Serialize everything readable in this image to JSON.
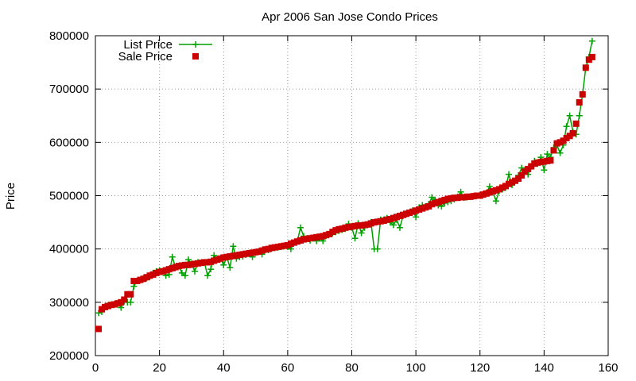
{
  "chart_data": {
    "type": "line",
    "title": "Apr 2006 San Jose Condo Prices",
    "xlabel": "",
    "ylabel": "Price",
    "xlim": [
      0,
      160
    ],
    "ylim": [
      200000,
      800000
    ],
    "x_ticks": [
      0,
      20,
      40,
      60,
      80,
      100,
      120,
      140,
      160
    ],
    "x_tick_labels": [
      "0",
      "20",
      "40",
      "60",
      "80",
      "100",
      "120",
      "140",
      "160"
    ],
    "y_ticks": [
      200000,
      300000,
      400000,
      500000,
      600000,
      700000,
      800000
    ],
    "y_tick_labels": [
      "200000",
      "300000",
      "400000",
      "500000",
      "600000",
      "700000",
      "800000"
    ],
    "grid": true,
    "legend_position": "top-left",
    "series": [
      {
        "name": "List Price",
        "style": "line with plus markers",
        "color": "#00a000",
        "x": [
          1,
          2,
          3,
          4,
          5,
          6,
          7,
          8,
          9,
          10,
          11,
          12,
          13,
          14,
          15,
          16,
          17,
          18,
          19,
          20,
          21,
          22,
          23,
          24,
          25,
          26,
          27,
          28,
          29,
          30,
          31,
          32,
          33,
          34,
          35,
          36,
          37,
          38,
          39,
          40,
          41,
          42,
          43,
          44,
          45,
          46,
          47,
          48,
          49,
          50,
          51,
          52,
          53,
          54,
          55,
          56,
          57,
          58,
          59,
          60,
          61,
          62,
          63,
          64,
          65,
          66,
          67,
          68,
          69,
          70,
          71,
          72,
          73,
          74,
          75,
          76,
          77,
          78,
          79,
          80,
          81,
          82,
          83,
          84,
          85,
          86,
          87,
          88,
          89,
          90,
          91,
          92,
          93,
          94,
          95,
          96,
          97,
          98,
          99,
          100,
          101,
          102,
          103,
          104,
          105,
          106,
          107,
          108,
          109,
          110,
          111,
          112,
          113,
          114,
          115,
          116,
          117,
          118,
          119,
          120,
          121,
          122,
          123,
          124,
          125,
          126,
          127,
          128,
          129,
          130,
          131,
          132,
          133,
          134,
          135,
          136,
          137,
          138,
          139,
          140,
          141,
          142,
          143,
          144,
          145,
          146,
          147,
          148,
          149,
          150,
          151,
          152,
          153,
          154,
          155
        ],
        "values": [
          280000,
          282000,
          293000,
          295000,
          296000,
          297000,
          298000,
          290000,
          302000,
          300000,
          300000,
          330000,
          340000,
          342000,
          345000,
          346000,
          348000,
          355000,
          358000,
          360000,
          358000,
          350000,
          352000,
          385000,
          365000,
          368000,
          355000,
          350000,
          380000,
          372000,
          358000,
          375000,
          374000,
          375000,
          350000,
          362000,
          388000,
          380000,
          382000,
          370000,
          385000,
          365000,
          405000,
          382000,
          385000,
          386000,
          389000,
          392000,
          385000,
          393000,
          395000,
          390000,
          398000,
          398000,
          401000,
          402000,
          403000,
          404000,
          406000,
          404000,
          400000,
          412000,
          415000,
          440000,
          424000,
          420000,
          416000,
          420000,
          415000,
          420000,
          415000,
          425000,
          428000,
          430000,
          432000,
          434000,
          436000,
          438000,
          447000,
          440000,
          420000,
          448000,
          430000,
          440000,
          445000,
          450000,
          400000,
          400000,
          455000,
          455000,
          458000,
          450000,
          445000,
          455000,
          440000,
          462000,
          465000,
          468000,
          472000,
          460000,
          478000,
          482000,
          480000,
          484000,
          497000,
          492000,
          482000,
          480000,
          486000,
          488000,
          490000,
          493000,
          498000,
          507000,
          496000,
          497000,
          498000,
          499000,
          500000,
          501000,
          503000,
          505000,
          517000,
          508000,
          490000,
          509000,
          512000,
          515000,
          540000,
          520000,
          528000,
          538000,
          552000,
          548000,
          540000,
          555000,
          565000,
          560000,
          572000,
          548000,
          578000,
          572000,
          590000,
          595000,
          580000,
          595000,
          630000,
          650000,
          620000,
          615000,
          650000,
          690000,
          740000,
          760000,
          790000
        ]
      },
      {
        "name": "Sale Price",
        "style": "square markers",
        "color": "#cc0000",
        "x": [
          1,
          2,
          3,
          4,
          5,
          6,
          7,
          8,
          9,
          10,
          11,
          12,
          13,
          14,
          15,
          16,
          17,
          18,
          19,
          20,
          21,
          22,
          23,
          24,
          25,
          26,
          27,
          28,
          29,
          30,
          31,
          32,
          33,
          34,
          35,
          36,
          37,
          38,
          39,
          40,
          41,
          42,
          43,
          44,
          45,
          46,
          47,
          48,
          49,
          50,
          51,
          52,
          53,
          54,
          55,
          56,
          57,
          58,
          59,
          60,
          61,
          62,
          63,
          64,
          65,
          66,
          67,
          68,
          69,
          70,
          71,
          72,
          73,
          74,
          75,
          76,
          77,
          78,
          79,
          80,
          81,
          82,
          83,
          84,
          85,
          86,
          87,
          88,
          89,
          90,
          91,
          92,
          93,
          94,
          95,
          96,
          97,
          98,
          99,
          100,
          101,
          102,
          103,
          104,
          105,
          106,
          107,
          108,
          109,
          110,
          111,
          112,
          113,
          114,
          115,
          116,
          117,
          118,
          119,
          120,
          121,
          122,
          123,
          124,
          125,
          126,
          127,
          128,
          129,
          130,
          131,
          132,
          133,
          134,
          135,
          136,
          137,
          138,
          139,
          140,
          141,
          142,
          143,
          144,
          145,
          146,
          147,
          148,
          149,
          150,
          151,
          152,
          153,
          154,
          155
        ],
        "values": [
          250000,
          287000,
          291000,
          293000,
          295000,
          296000,
          298000,
          300000,
          305000,
          315000,
          315000,
          340000,
          340000,
          342000,
          344000,
          347000,
          350000,
          352000,
          355000,
          357000,
          358000,
          360000,
          362000,
          364000,
          366000,
          368000,
          369000,
          370000,
          370000,
          371000,
          372000,
          373000,
          374000,
          375000,
          375000,
          376000,
          378000,
          380000,
          382000,
          384000,
          385000,
          386000,
          387000,
          388000,
          389000,
          390000,
          391000,
          392000,
          393000,
          394000,
          395000,
          397000,
          399000,
          400000,
          402000,
          403000,
          404000,
          405000,
          406000,
          407000,
          410000,
          412000,
          414000,
          416000,
          418000,
          419000,
          420000,
          421000,
          422000,
          423000,
          424000,
          426000,
          428000,
          432000,
          435000,
          437000,
          438000,
          440000,
          441000,
          442000,
          443000,
          444000,
          444000,
          445000,
          446000,
          448000,
          450000,
          451000,
          452000,
          453000,
          455000,
          456000,
          458000,
          460000,
          462000,
          464000,
          466000,
          468000,
          470000,
          472000,
          474000,
          476000,
          478000,
          480000,
          484000,
          486000,
          488000,
          490000,
          492000,
          494000,
          495000,
          496000,
          496000,
          497000,
          497000,
          498000,
          498000,
          499000,
          500000,
          500000,
          502000,
          504000,
          506000,
          508000,
          510000,
          512000,
          515000,
          518000,
          522000,
          525000,
          528000,
          532000,
          538000,
          545000,
          550000,
          555000,
          560000,
          562000,
          563000,
          564000,
          565000,
          566000,
          585000,
          598000,
          600000,
          603000,
          608000,
          612000,
          617000,
          635000,
          675000,
          690000,
          740000,
          755000,
          760000
        ]
      }
    ]
  }
}
